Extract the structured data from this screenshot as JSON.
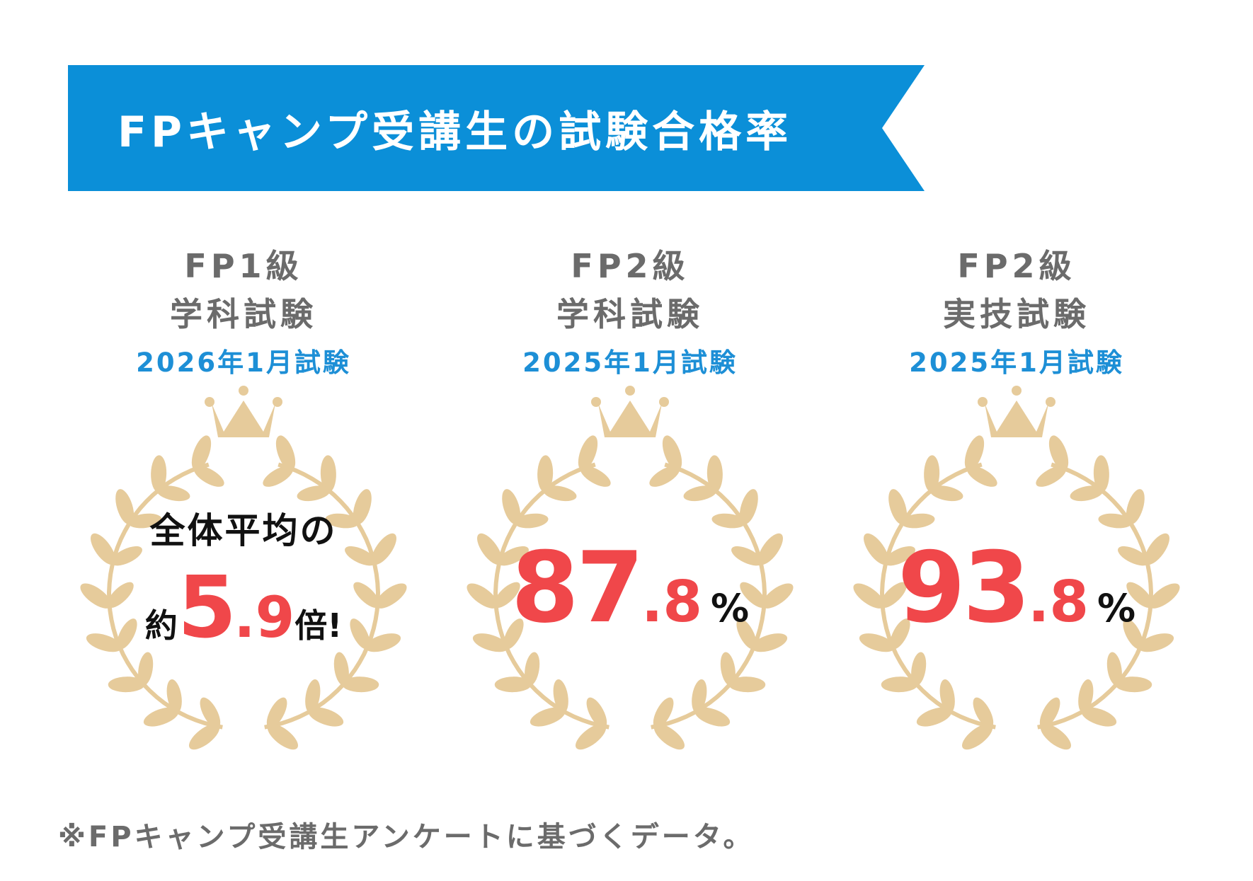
{
  "banner": {
    "title": "FPキャンプ受講生の試験合格率"
  },
  "cards": [
    {
      "line1": "FP1級",
      "line2": "学科試験",
      "date": "2026年1月試験",
      "avg_top": "全体平均の",
      "avg_pre": "約",
      "avg_int": "5",
      "avg_dec": ".9",
      "avg_post": "倍!"
    },
    {
      "line1": "FP2級",
      "line2": "学科試験",
      "date": "2025年1月試験",
      "rate_int": "87",
      "rate_dec": ".8",
      "rate_unit": "%"
    },
    {
      "line1": "FP2級",
      "line2": "実技試験",
      "date": "2025年1月試験",
      "rate_int": "93",
      "rate_dec": ".8",
      "rate_unit": "%"
    }
  ],
  "footnote": "※FPキャンプ受講生アンケートに基づくデータ。",
  "colors": {
    "banner": "#0b8fd8",
    "accent_red": "#f0474a",
    "gold": "#e6cb9b",
    "date_blue": "#1d8fd6",
    "gray_text": "#6b6b6b"
  },
  "icons": [
    "crown-icon",
    "laurel-wreath-icon"
  ]
}
